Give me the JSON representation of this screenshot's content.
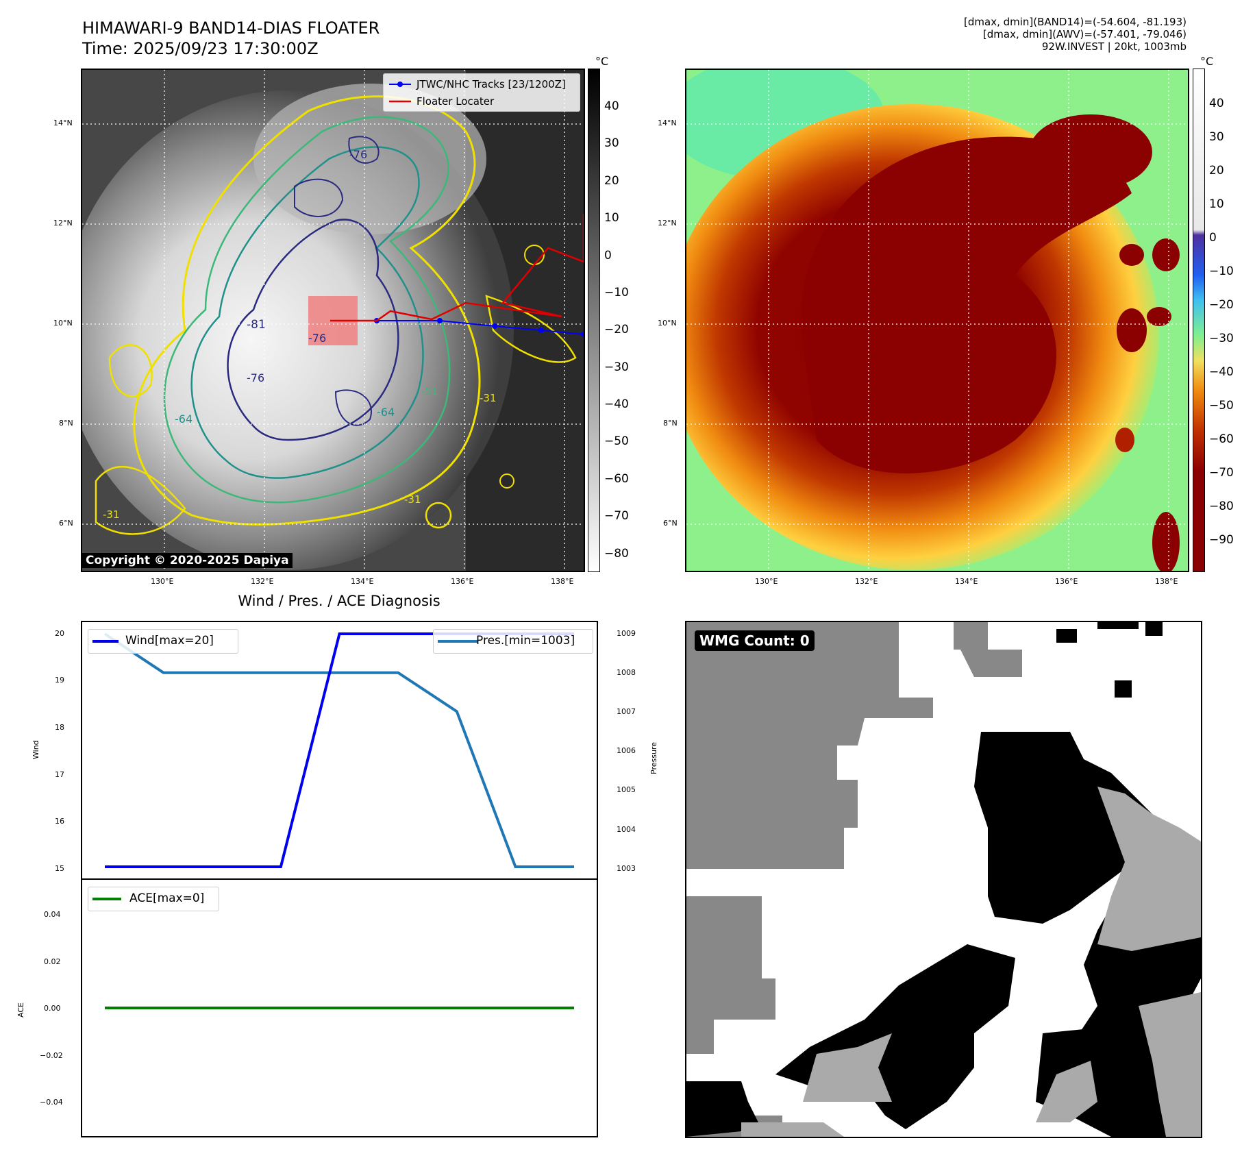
{
  "header": {
    "title_line1": "HIMAWARI-9 BAND14-DIAS FLOATER",
    "title_line2": "Time: 2025/09/23 17:30:00Z",
    "info_line1": "[dmax, dmin](BAND14)=(-54.604, -81.193)",
    "info_line2": "[dmax, dmin](AWV)=(-57.401, -79.046)",
    "info_line3": "92W.INVEST | 20kt, 1003mb"
  },
  "map": {
    "lat_labels": [
      "14°N",
      "12°N",
      "10°N",
      "8°N",
      "6°N"
    ],
    "lon_labels": [
      "130°E",
      "132°E",
      "134°E",
      "136°E",
      "138°E"
    ],
    "colorbar_unit": "°C",
    "ir_colorbar_ticks": [
      "40",
      "30",
      "20",
      "10",
      "0",
      "−10",
      "−20",
      "−30",
      "−40",
      "−50",
      "−60",
      "−70",
      "−80"
    ],
    "enhanced_colorbar_ticks": [
      "40",
      "30",
      "20",
      "10",
      "0",
      "−10",
      "−20",
      "−30",
      "−40",
      "−50",
      "−60",
      "−70",
      "−80",
      "−90"
    ],
    "legend_tracks": "JTWC/NHC Tracks [23/1200Z]",
    "legend_floater": "Floater Locater",
    "copyright": "Copyright © 2020-2025 Dapiya",
    "contour_labels": [
      "-81",
      "-76",
      "-76",
      "-76",
      "-64",
      "-64",
      "-51",
      "-31",
      "-31",
      "-31"
    ]
  },
  "diagnosis": {
    "title": "Wind / Pres. / ACE Diagnosis",
    "wind_ylabel": "Wind",
    "pressure_ylabel": "Pressure",
    "ace_ylabel": "ACE",
    "wind_legend": "Wind[max=20]",
    "pres_legend": "Pres.[min=1003]",
    "ace_legend": "ACE[max=0]"
  },
  "wmg": {
    "label": "WMG Count: 0"
  },
  "colors": {
    "wind": "#0000ee",
    "pressure": "#1f77b4",
    "ace": "#008000",
    "track": "#0000ff",
    "floater": "#e00000"
  },
  "chart_data": [
    {
      "type": "line",
      "name": "Wind",
      "x": [
        0,
        1,
        2,
        3,
        4,
        5,
        6,
        7,
        8
      ],
      "series": [
        {
          "name": "Wind[max=20]",
          "values": [
            15,
            15,
            15,
            15,
            20,
            20,
            20,
            20,
            20
          ]
        },
        {
          "name": "Pres.[min=1003]",
          "values": [
            1009,
            1008,
            1008,
            1008,
            1008,
            1008,
            1007,
            1003,
            1003
          ]
        }
      ],
      "ylabel": "Wind",
      "ylim": [
        15,
        20
      ],
      "y2label": "Pressure",
      "y2lim": [
        1003,
        1009
      ],
      "yticks": [
        "20",
        "19",
        "18",
        "17",
        "16",
        "15"
      ],
      "y2ticks": [
        "1009",
        "1008",
        "1007",
        "1006",
        "1005",
        "1004",
        "1003"
      ]
    },
    {
      "type": "line",
      "name": "ACE",
      "x": [
        0,
        1,
        2,
        3,
        4,
        5,
        6,
        7,
        8
      ],
      "series": [
        {
          "name": "ACE[max=0]",
          "values": [
            0,
            0,
            0,
            0,
            0,
            0,
            0,
            0,
            0
          ]
        }
      ],
      "ylabel": "ACE",
      "ylim": [
        -0.055,
        0.055
      ],
      "yticks": [
        "0.04",
        "0.02",
        "0.00",
        "−0.02",
        "−0.04"
      ]
    }
  ]
}
